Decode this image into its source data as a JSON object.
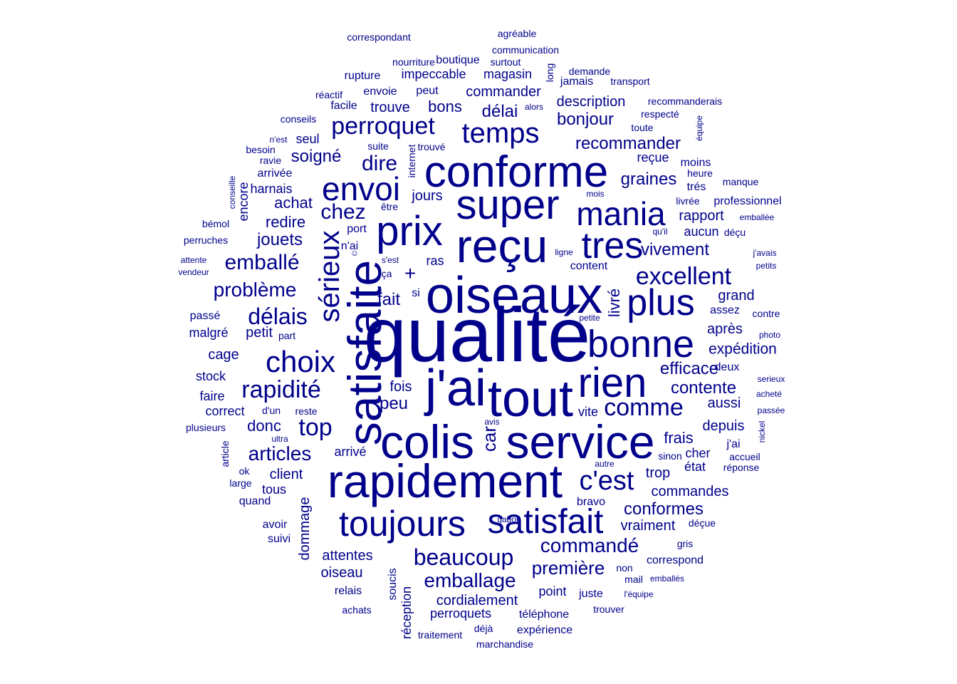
{
  "color": "#00008b",
  "words": [
    "qualité",
    "oiseaux",
    "j'ai",
    "tout",
    "service",
    "colis",
    "rapidement",
    "reçu",
    "satisfaite",
    "conforme",
    "super",
    "prix",
    "rien",
    "bonne",
    "plus",
    "tres",
    "toujours",
    "satisfait",
    "mania",
    "envoi",
    "choix",
    "sérieux",
    "temps",
    "c'est",
    "excellent",
    "comme",
    "rapidité",
    "beaucoup",
    "perroquet",
    "délais",
    "emballé",
    "problème",
    "top",
    "chez",
    "dire",
    "emballage",
    "commandé",
    "articles",
    "première",
    "recommander",
    "conformes",
    "contente",
    "efficace",
    "graines",
    "bonjour",
    "vivement",
    "expédition",
    "+",
    "jouets",
    "soigné",
    "délai",
    "redire",
    "livré",
    "achat",
    "commander",
    "description",
    "commandes",
    "cordialement",
    "grand",
    "vraiment",
    "attentes",
    "donc",
    "depuis",
    "après",
    "aussi",
    "frais",
    "peu",
    "fait",
    "impeccable",
    "magasin",
    "harnais",
    "bons",
    "perroquets",
    "client",
    "rapport",
    "car",
    "trop",
    "trouve",
    "reçue",
    "petit",
    "jours",
    "fois",
    "cage",
    "oiseau",
    "arrivé",
    "téléphone",
    "aucun",
    "cher",
    "état",
    "dommage",
    "stock",
    "malgré",
    "passé",
    "faire",
    "correct",
    "boutique",
    "vite",
    "réception",
    "juste",
    "point",
    "seul",
    "tous",
    "expérience",
    "avoir",
    "arrivée",
    "relais",
    "suivi",
    "deux",
    "assez",
    "facile",
    "envoie",
    "marchandise",
    "encore",
    "soucis",
    "moins",
    "être",
    "long",
    "content",
    "nourriture",
    "toute",
    "traitement",
    "bravo",
    "plusieurs",
    "quand",
    "achats",
    "trouver",
    "correspond",
    "mail",
    "non",
    "gris",
    "jamais",
    "demande",
    "surtout",
    "communication",
    "correspondant",
    "agréable",
    "rupture",
    "peut",
    "transport",
    "réactif",
    "conseils",
    "respecté",
    "recommanderais",
    "alors",
    "équipe",
    "n'est",
    "besoin",
    "ravie",
    "trouvé",
    "suite",
    "internet",
    "heure",
    "trés",
    "livrée",
    "professionnel",
    "manque",
    "mois",
    "conseille",
    "bémol",
    "perruches",
    "attente",
    "vendeur",
    "n'ai",
    "s'est",
    "ça",
    "ras",
    "si",
    "port",
    "ligne",
    "qu'il",
    "déçu",
    "emballée",
    "j'avais",
    "petits",
    "contre",
    "photo",
    "petite",
    "serieux",
    "acheté",
    "passée",
    "nickel",
    "accueil",
    "réponse",
    "j'ai",
    "sinon",
    "autre",
    "ultra",
    "d'un",
    "reste",
    "avis",
    "article",
    "ok",
    "large",
    "part",
    "gabon",
    "déçue",
    "emballés",
    "l'équipe",
    "déjà",
    "☺"
  ]
}
